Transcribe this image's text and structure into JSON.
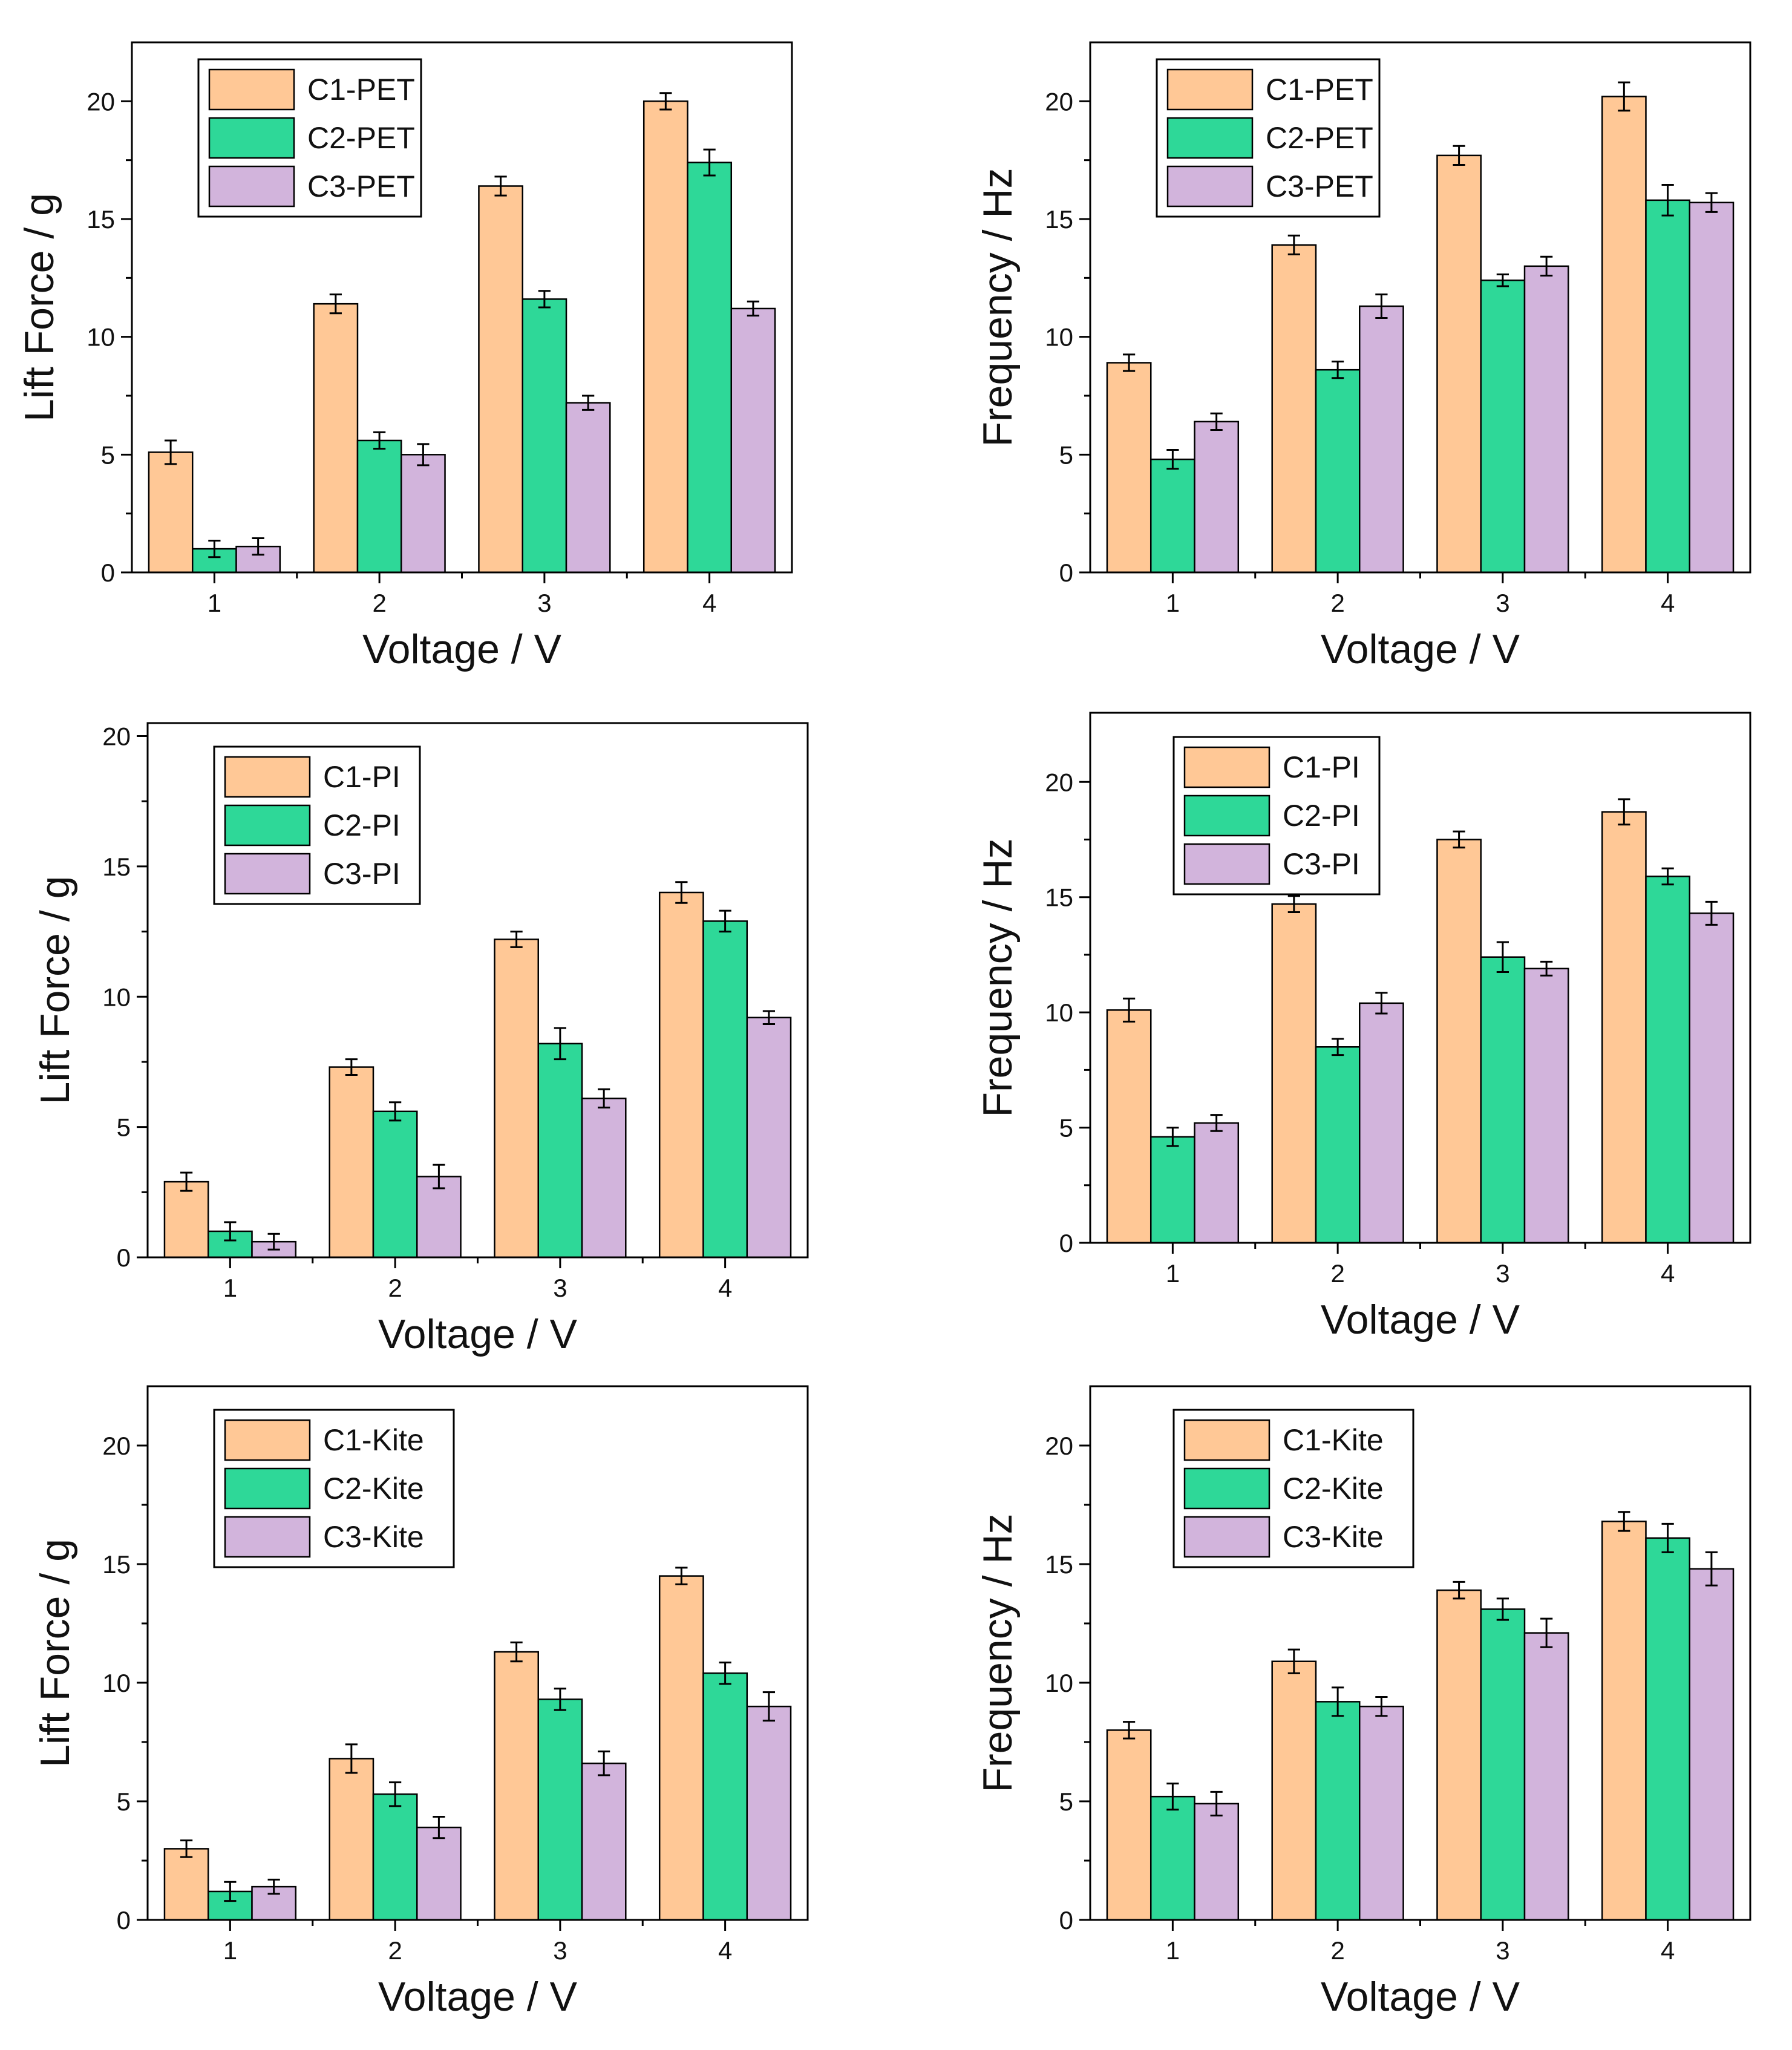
{
  "colors": {
    "series": [
      "#FFC896",
      "#2ED898",
      "#D2B4DC"
    ],
    "stroke": "#000000",
    "background": "#FFFFFF"
  },
  "chart_data": [
    {
      "id": "lift-pet",
      "type": "bar",
      "title": "",
      "xlabel": "Voltage / V",
      "ylabel": "Lift Force / g",
      "categories": [
        "1",
        "2",
        "3",
        "4"
      ],
      "ylim": [
        0,
        22.5
      ],
      "yticks": [
        0,
        5,
        10,
        15,
        20
      ],
      "ytick_labels": [
        "0",
        "5",
        "10",
        "15",
        "20"
      ],
      "legend_position": "top-left",
      "grid": false,
      "series": [
        {
          "name": "C1-PET",
          "values": [
            5.1,
            11.4,
            16.4,
            20.0
          ],
          "errors": [
            0.5,
            0.4,
            0.4,
            0.35
          ]
        },
        {
          "name": "C2-PET",
          "values": [
            1.0,
            5.6,
            11.6,
            17.4
          ],
          "errors": [
            0.35,
            0.35,
            0.35,
            0.55
          ]
        },
        {
          "name": "C3-PET",
          "values": [
            1.1,
            5.0,
            7.2,
            11.2
          ],
          "errors": [
            0.35,
            0.45,
            0.3,
            0.3
          ]
        }
      ]
    },
    {
      "id": "freq-pet",
      "type": "bar",
      "title": "",
      "xlabel": "Voltage / V",
      "ylabel": "Frequency / Hz",
      "categories": [
        "1",
        "2",
        "3",
        "4"
      ],
      "ylim": [
        0,
        22.5
      ],
      "yticks": [
        0,
        5,
        10,
        15,
        20
      ],
      "ytick_labels": [
        "0",
        "5",
        "10",
        "15",
        "20"
      ],
      "legend_position": "top-left",
      "grid": false,
      "series": [
        {
          "name": "C1-PET",
          "values": [
            8.9,
            13.9,
            17.7,
            20.2
          ],
          "errors": [
            0.35,
            0.4,
            0.4,
            0.6
          ]
        },
        {
          "name": "C2-PET",
          "values": [
            4.8,
            8.6,
            12.4,
            15.8
          ],
          "errors": [
            0.4,
            0.35,
            0.25,
            0.65
          ]
        },
        {
          "name": "C3-PET",
          "values": [
            6.4,
            11.3,
            13.0,
            15.7
          ],
          "errors": [
            0.35,
            0.5,
            0.4,
            0.4
          ]
        }
      ]
    },
    {
      "id": "lift-pi",
      "type": "bar",
      "title": "",
      "xlabel": "Voltage / V",
      "ylabel": "Lift Force / g",
      "categories": [
        "1",
        "2",
        "3",
        "4"
      ],
      "ylim": [
        0,
        20.5
      ],
      "yticks": [
        0,
        5,
        10,
        15,
        20
      ],
      "ytick_labels": [
        "0",
        "5",
        "10",
        "15",
        "20"
      ],
      "legend_position": "top-left",
      "grid": false,
      "series": [
        {
          "name": "C1-PI",
          "values": [
            2.9,
            7.3,
            12.2,
            14.0
          ],
          "errors": [
            0.35,
            0.3,
            0.3,
            0.4
          ]
        },
        {
          "name": "C2-PI",
          "values": [
            1.0,
            5.6,
            8.2,
            12.9
          ],
          "errors": [
            0.35,
            0.35,
            0.6,
            0.4
          ]
        },
        {
          "name": "C3-PI",
          "values": [
            0.6,
            3.1,
            6.1,
            9.2
          ],
          "errors": [
            0.3,
            0.45,
            0.35,
            0.25
          ]
        }
      ]
    },
    {
      "id": "freq-pi",
      "type": "bar",
      "title": "",
      "xlabel": "Voltage / V",
      "ylabel": "Frequency / Hz",
      "categories": [
        "1",
        "2",
        "3",
        "4"
      ],
      "ylim": [
        0,
        23
      ],
      "yticks": [
        0,
        5,
        10,
        15,
        20
      ],
      "ytick_labels": [
        "0",
        "5",
        "10",
        "15",
        "20"
      ],
      "legend_position": "top-left",
      "grid": false,
      "series": [
        {
          "name": "C1-PI",
          "values": [
            10.1,
            14.7,
            17.5,
            18.7
          ],
          "errors": [
            0.5,
            0.35,
            0.35,
            0.55
          ]
        },
        {
          "name": "C2-PI",
          "values": [
            4.6,
            8.5,
            12.4,
            15.9
          ],
          "errors": [
            0.4,
            0.35,
            0.65,
            0.35
          ]
        },
        {
          "name": "C3-PI",
          "values": [
            5.2,
            10.4,
            11.9,
            14.3
          ],
          "errors": [
            0.35,
            0.45,
            0.3,
            0.5
          ]
        }
      ]
    },
    {
      "id": "lift-kite",
      "type": "bar",
      "title": "",
      "xlabel": "Voltage / V",
      "ylabel": "Lift Force / g",
      "categories": [
        "1",
        "2",
        "3",
        "4"
      ],
      "ylim": [
        0,
        22.5
      ],
      "yticks": [
        0,
        5,
        10,
        15,
        20
      ],
      "ytick_labels": [
        "0",
        "5",
        "10",
        "15",
        "20"
      ],
      "legend_position": "top-left",
      "grid": false,
      "series": [
        {
          "name": "C1-Kite",
          "values": [
            3.0,
            6.8,
            11.3,
            14.5
          ],
          "errors": [
            0.35,
            0.6,
            0.4,
            0.35
          ]
        },
        {
          "name": "C2-Kite",
          "values": [
            1.2,
            5.3,
            9.3,
            10.4
          ],
          "errors": [
            0.4,
            0.5,
            0.45,
            0.45
          ]
        },
        {
          "name": "C3-Kite",
          "values": [
            1.4,
            3.9,
            6.6,
            9.0
          ],
          "errors": [
            0.3,
            0.45,
            0.5,
            0.6
          ]
        }
      ]
    },
    {
      "id": "freq-kite",
      "type": "bar",
      "title": "",
      "xlabel": "Voltage / V",
      "ylabel": "Frequency / Hz",
      "categories": [
        "1",
        "2",
        "3",
        "4"
      ],
      "ylim": [
        0,
        22.5
      ],
      "yticks": [
        0,
        5,
        10,
        15,
        20
      ],
      "ytick_labels": [
        "0",
        "5",
        "10",
        "15",
        "20"
      ],
      "legend_position": "top-left",
      "grid": false,
      "series": [
        {
          "name": "C1-Kite",
          "values": [
            8.0,
            10.9,
            13.9,
            16.8
          ],
          "errors": [
            0.35,
            0.5,
            0.35,
            0.4
          ]
        },
        {
          "name": "C2-Kite",
          "values": [
            5.2,
            9.2,
            13.1,
            16.1
          ],
          "errors": [
            0.55,
            0.6,
            0.45,
            0.6
          ]
        },
        {
          "name": "C3-Kite",
          "values": [
            4.9,
            9.0,
            12.1,
            14.8
          ],
          "errors": [
            0.5,
            0.4,
            0.6,
            0.7
          ]
        }
      ]
    }
  ]
}
